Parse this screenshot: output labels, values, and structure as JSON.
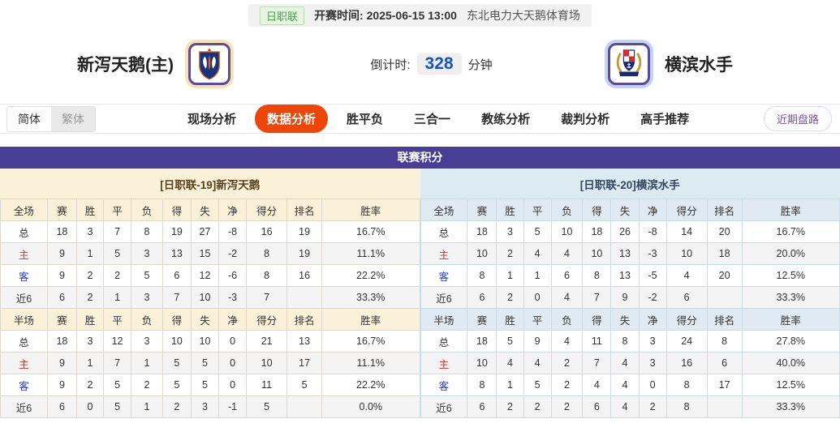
{
  "meta": {
    "league_badge": "日职联",
    "kickoff_label": "开赛时间:",
    "kickoff_time": "2025-06-15 13:00",
    "venue": "东北电力大天鹅体育场"
  },
  "teams": {
    "home": {
      "name": "新泻天鹅(主)",
      "logo": "albirex-niigata-crest"
    },
    "away": {
      "name": "横滨水手",
      "logo": "yokohama-marinos-crest"
    }
  },
  "countdown": {
    "label": "倒计时:",
    "value": "328",
    "unit": "分钟"
  },
  "lang_toggle": {
    "simplified": "简体",
    "traditional": "繁体"
  },
  "tabs": [
    {
      "label": "现场分析",
      "active": false
    },
    {
      "label": "数据分析",
      "active": true
    },
    {
      "label": "胜平负",
      "active": false
    },
    {
      "label": "三合一",
      "active": false
    },
    {
      "label": "教练分析",
      "active": false
    },
    {
      "label": "裁判分析",
      "active": false
    },
    {
      "label": "高手推荐",
      "active": false
    }
  ],
  "recent_button": "近期盘路",
  "colors": {
    "accent_purple": "#4a3d95",
    "active_tab_orange": "#ec4709",
    "home_label_red": "#d42f2f",
    "away_label_blue": "#2438c8",
    "home_panel_cream": "#fbf0d8",
    "away_panel_blue": "#dfeaf2",
    "countdown_blue": "#1653c4",
    "badge_green": "#48a24b"
  },
  "standings": {
    "title": "联赛积分",
    "home_header": "[日职联-19]新泻天鹅",
    "away_header": "[日职联-20]横滨水手",
    "columns_full": [
      "全场",
      "赛",
      "胜",
      "平",
      "负",
      "得",
      "失",
      "净",
      "得分",
      "排名",
      "胜率"
    ],
    "columns_half": [
      "半场",
      "赛",
      "胜",
      "平",
      "负",
      "得",
      "失",
      "净",
      "得分",
      "排名",
      "胜率"
    ],
    "home": {
      "full": [
        {
          "label": "总",
          "type": "total",
          "values": [
            "18",
            "3",
            "7",
            "8",
            "19",
            "27",
            "-8",
            "16",
            "19",
            "16.7%"
          ]
        },
        {
          "label": "主",
          "type": "home",
          "values": [
            "9",
            "1",
            "5",
            "3",
            "13",
            "15",
            "-2",
            "8",
            "19",
            "11.1%"
          ]
        },
        {
          "label": "客",
          "type": "away",
          "values": [
            "9",
            "2",
            "2",
            "5",
            "6",
            "12",
            "-6",
            "8",
            "16",
            "22.2%"
          ]
        },
        {
          "label": "近6",
          "type": "recent",
          "values": [
            "6",
            "2",
            "1",
            "3",
            "7",
            "10",
            "-3",
            "7",
            "",
            "33.3%"
          ]
        }
      ],
      "half": [
        {
          "label": "总",
          "type": "total",
          "values": [
            "18",
            "3",
            "12",
            "3",
            "10",
            "10",
            "0",
            "21",
            "13",
            "16.7%"
          ]
        },
        {
          "label": "主",
          "type": "home",
          "values": [
            "9",
            "1",
            "7",
            "1",
            "5",
            "5",
            "0",
            "10",
            "17",
            "11.1%"
          ]
        },
        {
          "label": "客",
          "type": "away",
          "values": [
            "9",
            "2",
            "5",
            "2",
            "5",
            "5",
            "0",
            "11",
            "5",
            "22.2%"
          ]
        },
        {
          "label": "近6",
          "type": "recent",
          "values": [
            "6",
            "0",
            "5",
            "1",
            "2",
            "3",
            "-1",
            "5",
            "",
            "0.0%"
          ]
        }
      ]
    },
    "away": {
      "full": [
        {
          "label": "总",
          "type": "total",
          "values": [
            "18",
            "3",
            "5",
            "10",
            "18",
            "26",
            "-8",
            "14",
            "20",
            "16.7%"
          ]
        },
        {
          "label": "主",
          "type": "home",
          "values": [
            "10",
            "2",
            "4",
            "4",
            "10",
            "13",
            "-3",
            "10",
            "18",
            "20.0%"
          ]
        },
        {
          "label": "客",
          "type": "away",
          "values": [
            "8",
            "1",
            "1",
            "6",
            "8",
            "13",
            "-5",
            "4",
            "20",
            "12.5%"
          ]
        },
        {
          "label": "近6",
          "type": "recent",
          "values": [
            "6",
            "2",
            "0",
            "4",
            "7",
            "9",
            "-2",
            "6",
            "",
            "33.3%"
          ]
        }
      ],
      "half": [
        {
          "label": "总",
          "type": "total",
          "values": [
            "18",
            "5",
            "9",
            "4",
            "11",
            "8",
            "3",
            "24",
            "8",
            "27.8%"
          ]
        },
        {
          "label": "主",
          "type": "home",
          "values": [
            "10",
            "4",
            "4",
            "2",
            "7",
            "4",
            "3",
            "16",
            "6",
            "40.0%"
          ]
        },
        {
          "label": "客",
          "type": "away",
          "values": [
            "8",
            "1",
            "5",
            "2",
            "4",
            "4",
            "0",
            "8",
            "17",
            "12.5%"
          ]
        },
        {
          "label": "近6",
          "type": "recent",
          "values": [
            "6",
            "2",
            "2",
            "2",
            "6",
            "4",
            "2",
            "8",
            "",
            "33.3%"
          ]
        }
      ]
    }
  }
}
